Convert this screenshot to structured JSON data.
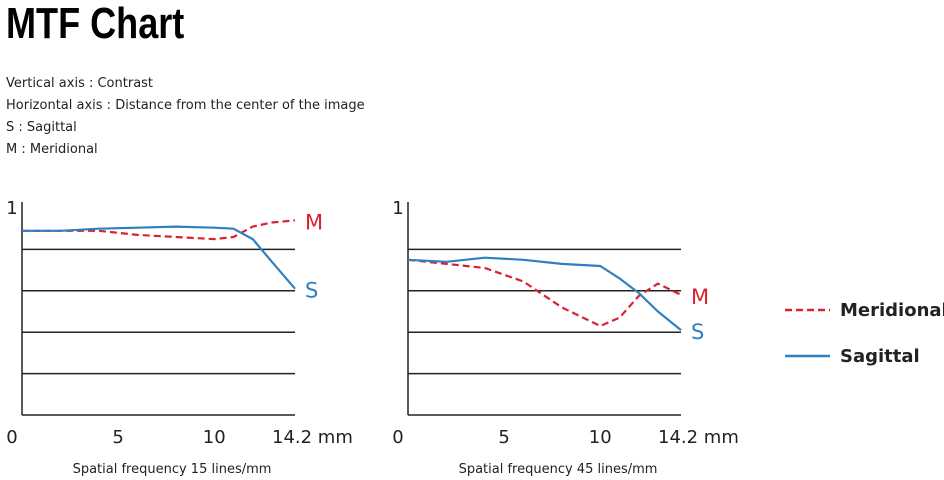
{
  "title": "MTF Chart",
  "notes": [
    "Vertical axis : Contrast",
    "Horizontal axis : Distance from the center of the image",
    "S : Sagittal",
    "M : Meridional"
  ],
  "chart_data": [
    {
      "type": "line",
      "xlabel": "Spatial frequency 15 lines/mm",
      "x": [
        0,
        2,
        4,
        6,
        8,
        10,
        11,
        12,
        13,
        14.2
      ],
      "series": [
        {
          "name": "Meridional",
          "label": "M",
          "color": "#d8232f",
          "dashed": true,
          "values": [
            0.89,
            0.89,
            0.89,
            0.87,
            0.86,
            0.85,
            0.86,
            0.91,
            0.93,
            0.94
          ]
        },
        {
          "name": "Sagittal",
          "label": "S",
          "color": "#2f7fc1",
          "dashed": false,
          "values": [
            0.89,
            0.89,
            0.9,
            0.905,
            0.91,
            0.905,
            0.9,
            0.85,
            0.74,
            0.61
          ]
        }
      ],
      "xlim": [
        0,
        14.2
      ],
      "ylim": [
        0,
        1
      ],
      "xticks": [
        0,
        5,
        10,
        {
          "value": 14.2,
          "label": "14.2 mm"
        }
      ],
      "yticks": [
        1
      ],
      "grid_lines": [
        0.2,
        0.4,
        0.6,
        0.8
      ]
    },
    {
      "type": "line",
      "xlabel": "Spatial frequency 45 lines/mm",
      "x": [
        0,
        2,
        4,
        6,
        8,
        10,
        11,
        12,
        13,
        14.2
      ],
      "series": [
        {
          "name": "Meridional",
          "label": "M",
          "color": "#d8232f",
          "dashed": true,
          "values": [
            0.75,
            0.73,
            0.71,
            0.645,
            0.52,
            0.43,
            0.47,
            0.575,
            0.635,
            0.58
          ]
        },
        {
          "name": "Sagittal",
          "label": "S",
          "color": "#2f7fc1",
          "dashed": false,
          "values": [
            0.75,
            0.74,
            0.76,
            0.75,
            0.73,
            0.72,
            0.66,
            0.59,
            0.5,
            0.41
          ]
        }
      ],
      "xlim": [
        0,
        14.2
      ],
      "ylim": [
        0,
        1
      ],
      "xticks": [
        0,
        5,
        10,
        {
          "value": 14.2,
          "label": "14.2 mm"
        }
      ],
      "yticks": [
        1
      ],
      "grid_lines": [
        0.2,
        0.4,
        0.6,
        0.8
      ]
    }
  ]
}
